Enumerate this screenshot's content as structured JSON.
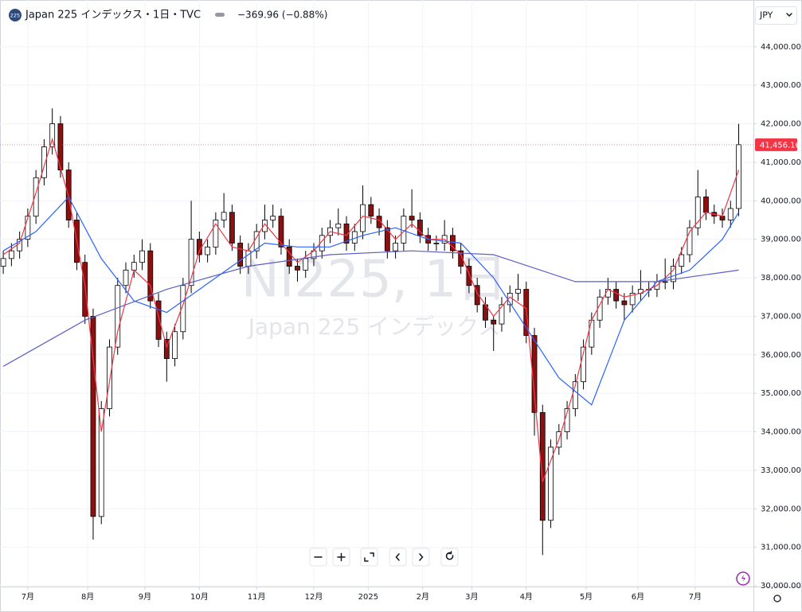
{
  "header": {
    "badge": "225",
    "title": "Japan 225 インデックス・1日・TVC",
    "change": "−369.96 (−0.88%)",
    "currency": "JPY"
  },
  "chart_data": {
    "type": "candlestick",
    "watermark": "NI225, 1日",
    "watermark_subtitle": "Japan 225 インデックス",
    "x": [
      0,
      3,
      6,
      9,
      12,
      15,
      18,
      21,
      24,
      27,
      30,
      33,
      36,
      39,
      42,
      45,
      48,
      51,
      54,
      57,
      60,
      63,
      66,
      69,
      72,
      75,
      78,
      81,
      84,
      87,
      90,
      93,
      96,
      99,
      102,
      105,
      108,
      111,
      114,
      117,
      120,
      123,
      126,
      129,
      132,
      135,
      138,
      141,
      144,
      147,
      150,
      153,
      156,
      159,
      162,
      165,
      168,
      171,
      174,
      177,
      180,
      183,
      186,
      189,
      192,
      195,
      198,
      201,
      204,
      207,
      210,
      213,
      216,
      219,
      222,
      225,
      228,
      231,
      234,
      237,
      240,
      243,
      246,
      249,
      252,
      255,
      258,
      261,
      264,
      267,
      270
    ],
    "candles": [
      [
        38300,
        38700,
        38100,
        38500
      ],
      [
        38500,
        38900,
        38300,
        38700
      ],
      [
        38700,
        39200,
        38500,
        39000
      ],
      [
        39000,
        39800,
        38800,
        39600
      ],
      [
        39600,
        40800,
        39400,
        40600
      ],
      [
        40600,
        41600,
        40400,
        41400
      ],
      [
        41400,
        42400,
        41200,
        42000
      ],
      [
        42000,
        42200,
        40600,
        40800
      ],
      [
        40800,
        41000,
        39300,
        39500
      ],
      [
        39500,
        39700,
        38200,
        38400
      ],
      [
        38400,
        38600,
        36800,
        37000
      ],
      [
        37000,
        37200,
        31200,
        31800
      ],
      [
        31800,
        34800,
        31600,
        34600
      ],
      [
        34600,
        36400,
        34400,
        36200
      ],
      [
        36200,
        38000,
        36000,
        37800
      ],
      [
        37800,
        38400,
        37600,
        38200
      ],
      [
        38200,
        38600,
        38000,
        38400
      ],
      [
        38400,
        39000,
        38200,
        38700
      ],
      [
        38700,
        38900,
        37200,
        37400
      ],
      [
        37400,
        37600,
        36200,
        36400
      ],
      [
        36400,
        36600,
        35300,
        35900
      ],
      [
        35900,
        36800,
        35700,
        36600
      ],
      [
        36600,
        38000,
        36400,
        37800
      ],
      [
        37800,
        40000,
        37600,
        39000
      ],
      [
        39000,
        39200,
        38400,
        38600
      ],
      [
        38600,
        39000,
        38400,
        38800
      ],
      [
        38800,
        39700,
        38600,
        39500
      ],
      [
        39500,
        40200,
        39300,
        39700
      ],
      [
        39700,
        39900,
        38700,
        38900
      ],
      [
        38900,
        39100,
        38100,
        38300
      ],
      [
        38300,
        38900,
        38100,
        38700
      ],
      [
        38700,
        39400,
        38500,
        39200
      ],
      [
        39200,
        39900,
        39000,
        39500
      ],
      [
        39500,
        39900,
        39300,
        39600
      ],
      [
        39600,
        39800,
        38600,
        38800
      ],
      [
        38800,
        39000,
        38100,
        38300
      ],
      [
        38300,
        38500,
        37900,
        38200
      ],
      [
        38200,
        38700,
        38000,
        38500
      ],
      [
        38500,
        38900,
        38300,
        38700
      ],
      [
        38700,
        39300,
        38500,
        39100
      ],
      [
        39100,
        39500,
        38900,
        39300
      ],
      [
        39300,
        39800,
        39100,
        39400
      ],
      [
        39400,
        39600,
        38700,
        38900
      ],
      [
        38900,
        39400,
        38700,
        39200
      ],
      [
        39200,
        40400,
        39000,
        39900
      ],
      [
        39900,
        40100,
        39400,
        39600
      ],
      [
        39600,
        39800,
        39100,
        39300
      ],
      [
        39300,
        39500,
        38500,
        38700
      ],
      [
        38700,
        39100,
        38500,
        38900
      ],
      [
        38900,
        39800,
        38700,
        39600
      ],
      [
        39600,
        40300,
        39300,
        39500
      ],
      [
        39500,
        39700,
        38900,
        39100
      ],
      [
        39100,
        39300,
        38700,
        38900
      ],
      [
        38900,
        39100,
        38700,
        38900
      ],
      [
        38900,
        39500,
        38700,
        39100
      ],
      [
        39100,
        39300,
        38500,
        38700
      ],
      [
        38700,
        38900,
        38100,
        38300
      ],
      [
        38300,
        38500,
        37600,
        37800
      ],
      [
        37800,
        38000,
        37100,
        37300
      ],
      [
        37300,
        37500,
        36700,
        36900
      ],
      [
        36900,
        37000,
        36100,
        36800
      ],
      [
        36800,
        37500,
        36600,
        37300
      ],
      [
        37300,
        37800,
        37100,
        37600
      ],
      [
        37600,
        38100,
        37400,
        37700
      ],
      [
        37700,
        37900,
        36300,
        36500
      ],
      [
        36500,
        36700,
        33900,
        34500
      ],
      [
        34500,
        34700,
        30800,
        31700
      ],
      [
        31700,
        33800,
        31500,
        33600
      ],
      [
        33600,
        34200,
        33400,
        34000
      ],
      [
        34000,
        34800,
        33800,
        34600
      ],
      [
        34600,
        35500,
        34400,
        35300
      ],
      [
        35300,
        36400,
        35100,
        36200
      ],
      [
        36200,
        37100,
        36000,
        36900
      ],
      [
        36900,
        37700,
        36700,
        37500
      ],
      [
        37500,
        38000,
        37300,
        37700
      ],
      [
        37700,
        37900,
        37200,
        37400
      ],
      [
        37400,
        37600,
        36900,
        37300
      ],
      [
        37300,
        37800,
        37100,
        37600
      ],
      [
        37600,
        38200,
        37400,
        37700
      ],
      [
        37700,
        37900,
        37500,
        37700
      ],
      [
        37700,
        38100,
        37500,
        37900
      ],
      [
        37900,
        38500,
        37700,
        37900
      ],
      [
        37900,
        38500,
        37700,
        38300
      ],
      [
        38300,
        38800,
        38100,
        38600
      ],
      [
        38600,
        39500,
        38400,
        39300
      ],
      [
        39300,
        40800,
        39100,
        40100
      ],
      [
        40100,
        40300,
        39500,
        39700
      ],
      [
        39700,
        39900,
        39400,
        39600
      ],
      [
        39600,
        39800,
        39300,
        39500
      ],
      [
        39500,
        40000,
        39300,
        39800
      ],
      [
        39800,
        42000,
        39600,
        41456.16
      ]
    ],
    "up_color": "#ffffff",
    "down_color": "#8b1010",
    "wick_color": "#000000",
    "lines": [
      {
        "color": "#f23645",
        "x": [
          0,
          6,
          12,
          18,
          24,
          30,
          36,
          42,
          48,
          54,
          60,
          66,
          72,
          78,
          84,
          90,
          96,
          102,
          108,
          114,
          120,
          126,
          132,
          138,
          144,
          150,
          156,
          162,
          168,
          174,
          180,
          186,
          192,
          198,
          204,
          210,
          216,
          222,
          228,
          234,
          240,
          246,
          252,
          258,
          264,
          270
        ],
        "values": [
          38600,
          38900,
          40200,
          41600,
          40100,
          37800,
          34000,
          36600,
          38200,
          37800,
          36200,
          37300,
          38700,
          39400,
          38800,
          38700,
          39400,
          38900,
          38400,
          38700,
          39200,
          39100,
          39600,
          39500,
          39000,
          39400,
          39000,
          39000,
          38600,
          37600,
          37000,
          37500,
          37200,
          32700,
          33800,
          35200,
          36900,
          37700,
          37500,
          37600,
          37800,
          38200,
          39200,
          39700,
          39600,
          40800
        ]
      },
      {
        "color": "#2962ff",
        "x": [
          0,
          12,
          24,
          36,
          48,
          60,
          72,
          84,
          96,
          108,
          120,
          132,
          144,
          156,
          168,
          180,
          192,
          204,
          216,
          228,
          240,
          252,
          264,
          270
        ],
        "values": [
          38700,
          39200,
          40100,
          38500,
          37400,
          37100,
          37700,
          38300,
          38900,
          38800,
          38800,
          39100,
          39300,
          39000,
          38900,
          38000,
          36700,
          35400,
          34700,
          36900,
          37900,
          38200,
          39000,
          39700
        ]
      },
      {
        "color": "#5b5fc7",
        "x": [
          0,
          30,
          60,
          90,
          120,
          150,
          180,
          210,
          240,
          270
        ],
        "values": [
          35700,
          36900,
          37700,
          38300,
          38600,
          38700,
          38600,
          37900,
          37900,
          38200
        ]
      }
    ],
    "xlim": [
      -1.2,
      275.4
    ],
    "xticks": [
      {
        "value": 9,
        "label": "7月"
      },
      {
        "value": 31,
        "label": "8月"
      },
      {
        "value": 52,
        "label": "9月"
      },
      {
        "value": 72,
        "label": "10月"
      },
      {
        "value": 93,
        "label": "11月"
      },
      {
        "value": 114,
        "label": "12月"
      },
      {
        "value": 134,
        "label": "2025"
      },
      {
        "value": 154,
        "label": "2月"
      },
      {
        "value": 172,
        "label": "3月"
      },
      {
        "value": 192,
        "label": "4月"
      },
      {
        "value": 214,
        "label": "5月"
      },
      {
        "value": 233,
        "label": "6月"
      },
      {
        "value": 254,
        "label": "7月"
      }
    ],
    "ylim": [
      29980,
      45050
    ],
    "yticks": [
      {
        "value": 30000,
        "label": "30,000.00"
      },
      {
        "value": 31000,
        "label": "31,000.00"
      },
      {
        "value": 32000,
        "label": "32,000.00"
      },
      {
        "value": 33000,
        "label": "33,000.00"
      },
      {
        "value": 34000,
        "label": "34,000.00"
      },
      {
        "value": 35000,
        "label": "35,000.00"
      },
      {
        "value": 36000,
        "label": "36,000.00"
      },
      {
        "value": 37000,
        "label": "37,000.00"
      },
      {
        "value": 38000,
        "label": "38,000.00"
      },
      {
        "value": 39000,
        "label": "39,000.00"
      },
      {
        "value": 40000,
        "label": "40,000.00"
      },
      {
        "value": 41000,
        "label": "41,000.00"
      },
      {
        "value": 42000,
        "label": "42,000.00"
      },
      {
        "value": 43000,
        "label": "43,000.00"
      },
      {
        "value": 44000,
        "label": "44,000.00"
      }
    ],
    "grid": true,
    "last_price": {
      "value": 41456.16,
      "label": "41,456.16"
    },
    "last_price_color": "#f23645"
  }
}
